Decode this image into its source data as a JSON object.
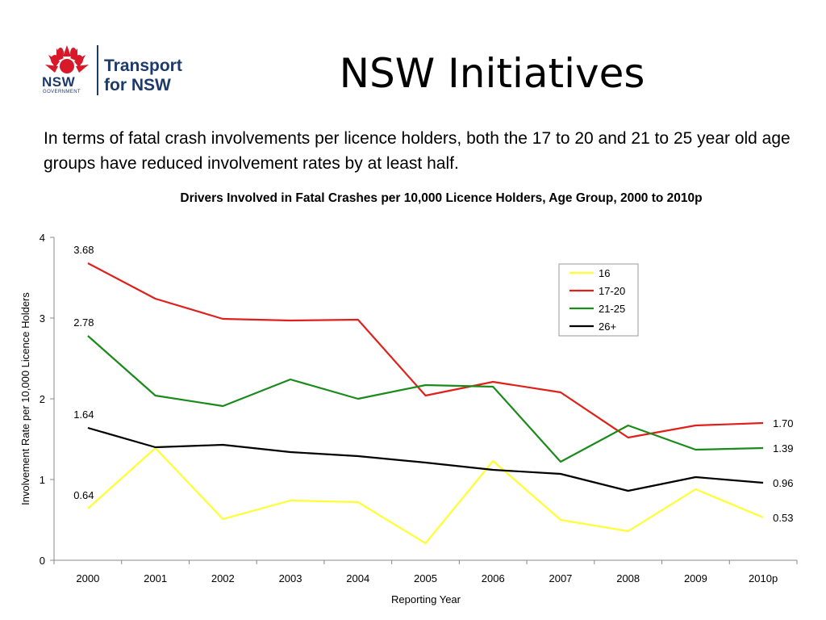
{
  "slide": {
    "title": "NSW Initiatives",
    "intro": "In terms of fatal crash involvements per licence holders, both the 17 to 20 and 21 to 25 year old age groups have reduced involvement rates by at least half."
  },
  "logo": {
    "nsw": "NSW",
    "government": "GOVERNMENT",
    "line1": "Transport",
    "line2": "for NSW"
  },
  "chart_data": {
    "type": "line",
    "title": "Drivers Involved in Fatal Crashes per 10,000 Licence Holders, Age Group, 2000 to 2010p",
    "xlabel": "Reporting Year",
    "ylabel": "Involvement Rate per 10,000 Licence Holders",
    "categories": [
      "2000",
      "2001",
      "2002",
      "2003",
      "2004",
      "2005",
      "2006",
      "2007",
      "2008",
      "2009",
      "2010p"
    ],
    "ylim": [
      0,
      4
    ],
    "yticks": [
      0,
      1,
      2,
      3,
      4
    ],
    "grid": false,
    "legend_position": "top-right",
    "series": [
      {
        "name": "16",
        "color": "#ffff33",
        "values": [
          0.64,
          1.39,
          0.51,
          0.74,
          0.72,
          0.21,
          1.23,
          0.5,
          0.36,
          0.88,
          0.53
        ],
        "start_label": "0.64",
        "end_label": "0.53"
      },
      {
        "name": "17-20",
        "color": "#e0201b",
        "values": [
          3.68,
          3.24,
          2.99,
          2.97,
          2.98,
          2.04,
          2.21,
          2.08,
          1.52,
          1.67,
          1.7
        ],
        "start_label": "3.68",
        "end_label": "1.70"
      },
      {
        "name": "21-25",
        "color": "#1a8a1a",
        "values": [
          2.78,
          2.04,
          1.91,
          2.24,
          2.0,
          2.17,
          2.15,
          1.22,
          1.67,
          1.37,
          1.39
        ],
        "start_label": "2.78",
        "end_label": "1.39"
      },
      {
        "name": "26+",
        "color": "#000000",
        "values": [
          1.64,
          1.4,
          1.43,
          1.34,
          1.29,
          1.21,
          1.12,
          1.07,
          0.86,
          1.03,
          0.96
        ],
        "start_label": "1.64",
        "end_label": "0.96"
      }
    ]
  }
}
